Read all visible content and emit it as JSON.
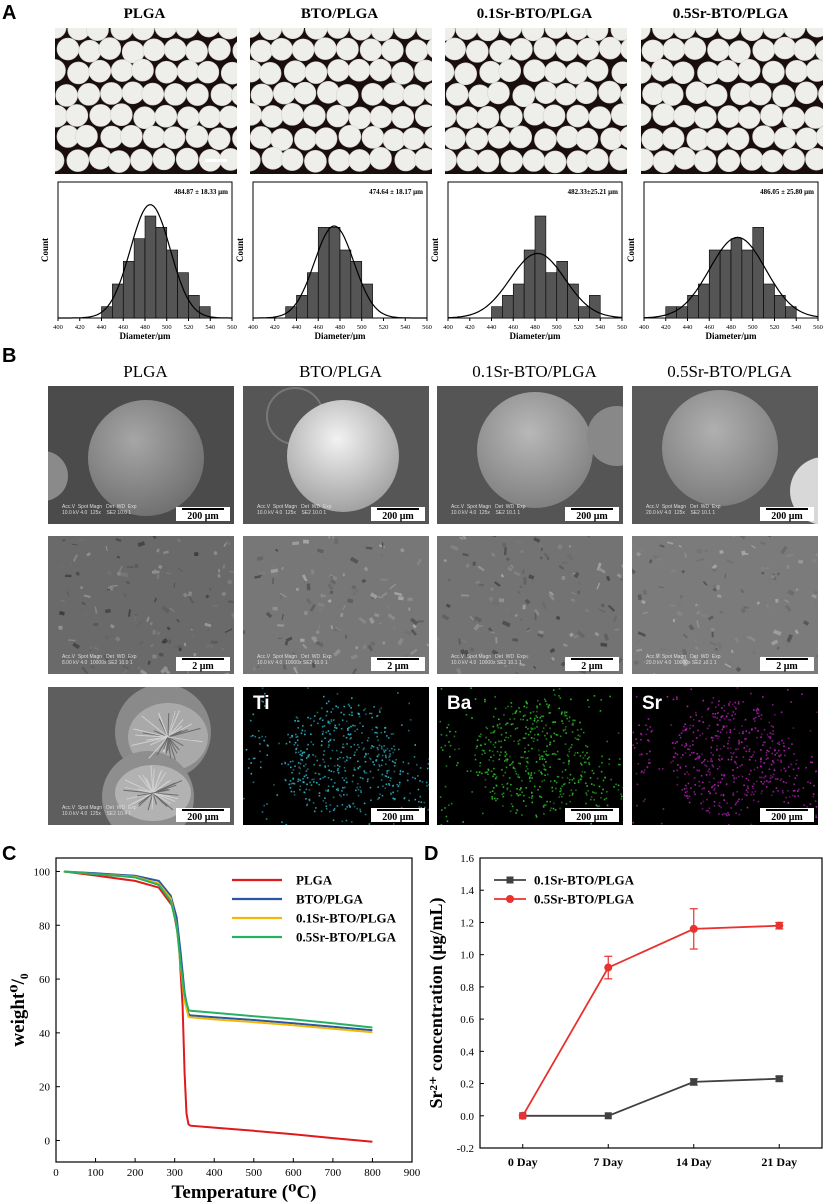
{
  "panel_a": {
    "letter": "A",
    "columns": [
      {
        "title": "PLGA",
        "annotation": "484.87 ± 18.33 μm"
      },
      {
        "title": "BTO/PLGA",
        "annotation": "474.64 ± 18.17 μm"
      },
      {
        "title": "0.1Sr-BTO/PLGA",
        "annotation": "482.33±25.21 μm"
      },
      {
        "title": "0.5Sr-BTO/PLGA",
        "annotation": "486.05 ± 25.80 μm"
      }
    ],
    "ylabel": "Count",
    "xlabel": "Diameter/μm"
  },
  "panel_b": {
    "letter": "B",
    "columns": [
      "PLGA",
      "BTO/PLGA",
      "0.1Sr-BTO/PLGA",
      "0.5Sr-BTO/PLGA"
    ],
    "scale_200": "200 μm",
    "scale_2": "2 μm",
    "mapping_labels": [
      "Ti",
      "Ba",
      "Sr"
    ],
    "mapping_colors": [
      "#2fb3c4",
      "#2ec02a",
      "#b520b5"
    ]
  },
  "panel_c": {
    "letter": "C"
  },
  "panel_d": {
    "letter": "D"
  },
  "chart_data": [
    {
      "type": "bar",
      "panel": "A-PLGA",
      "xlabel": "Diameter/μm",
      "ylabel": "Count",
      "xlim": [
        400,
        560
      ],
      "bins": [
        440,
        450,
        460,
        470,
        480,
        490,
        500,
        510,
        520,
        530
      ],
      "values": [
        1,
        3,
        5,
        7,
        9,
        8,
        6,
        4,
        2,
        1
      ],
      "fit": {
        "mean": 484.87,
        "sd": 18.33
      }
    },
    {
      "type": "bar",
      "panel": "A-BTO/PLGA",
      "xlabel": "Diameter/μm",
      "ylabel": "Count",
      "xlim": [
        400,
        560
      ],
      "bins": [
        430,
        440,
        450,
        460,
        470,
        480,
        490,
        500
      ],
      "values": [
        1,
        2,
        4,
        8,
        8,
        6,
        5,
        3
      ],
      "fit": {
        "mean": 474.64,
        "sd": 18.17
      }
    },
    {
      "type": "bar",
      "panel": "A-0.1Sr-BTO/PLGA",
      "xlabel": "Diameter/μm",
      "ylabel": "Count",
      "xlim": [
        400,
        560
      ],
      "bins": [
        440,
        450,
        460,
        470,
        480,
        490,
        500,
        510,
        520,
        530
      ],
      "values": [
        1,
        2,
        3,
        6,
        9,
        4,
        5,
        3,
        1,
        2
      ],
      "fit": {
        "mean": 482.33,
        "sd": 25.21
      }
    },
    {
      "type": "bar",
      "panel": "A-0.5Sr-BTO/PLGA",
      "xlabel": "Diameter/μm",
      "ylabel": "Count",
      "xlim": [
        400,
        560
      ],
      "bins": [
        420,
        430,
        440,
        450,
        460,
        470,
        480,
        490,
        500,
        510,
        520,
        530
      ],
      "values": [
        1,
        1,
        2,
        3,
        6,
        6,
        7,
        6,
        8,
        3,
        2,
        1
      ],
      "fit": {
        "mean": 486.05,
        "sd": 25.8
      }
    },
    {
      "type": "line",
      "panel": "C",
      "xlabel": "Temperature (⁰C)",
      "ylabel": "weight⁰/₀",
      "xlim": [
        0,
        900
      ],
      "ylim": [
        -8,
        105
      ],
      "xticks": [
        0,
        100,
        200,
        300,
        400,
        500,
        600,
        700,
        800,
        900
      ],
      "yticks": [
        0,
        20,
        40,
        60,
        80,
        100
      ],
      "legend_position": "top-right",
      "series": [
        {
          "name": "PLGA",
          "color": "#e0191c",
          "x": [
            20,
            100,
            200,
            260,
            295,
            310,
            320,
            325,
            330,
            335,
            340,
            400,
            500,
            600,
            700,
            800
          ],
          "y": [
            100,
            98.5,
            96.5,
            94,
            87,
            75,
            50,
            25,
            10,
            6,
            5.5,
            4.8,
            3.6,
            2.3,
            0.9,
            -0.5
          ]
        },
        {
          "name": "BTO/PLGA",
          "color": "#2a57a3",
          "x": [
            20,
            100,
            200,
            260,
            290,
            305,
            315,
            325,
            335,
            340,
            400,
            500,
            600,
            700,
            800
          ],
          "y": [
            100,
            99.3,
            98.4,
            96.5,
            91,
            83,
            70,
            55,
            47,
            46.5,
            45.8,
            44.8,
            43.6,
            42.3,
            41
          ]
        },
        {
          "name": "0.1Sr-BTO/PLGA",
          "color": "#f2b807",
          "x": [
            20,
            100,
            200,
            260,
            290,
            305,
            315,
            325,
            335,
            340,
            400,
            500,
            600,
            700,
            800
          ],
          "y": [
            100,
            99,
            98,
            95.5,
            90,
            80,
            65,
            52,
            46,
            45.8,
            45,
            44,
            42.8,
            41.5,
            40.2
          ]
        },
        {
          "name": "0.5Sr-BTO/PLGA",
          "color": "#27b060",
          "x": [
            20,
            100,
            200,
            260,
            290,
            305,
            315,
            325,
            335,
            340,
            400,
            500,
            600,
            700,
            800
          ],
          "y": [
            100,
            99,
            97.8,
            95,
            89,
            80,
            66,
            54,
            48.5,
            48.2,
            47.5,
            46.2,
            45,
            43.6,
            42
          ]
        }
      ]
    },
    {
      "type": "line",
      "panel": "D",
      "ylabel": "Sr²⁺ concentration (μg/mL)",
      "ylim": [
        -0.2,
        1.6
      ],
      "yticks": [
        -0.2,
        0.0,
        0.2,
        0.4,
        0.6,
        0.8,
        1.0,
        1.2,
        1.4,
        1.6
      ],
      "categories": [
        "0 Day",
        "7 Day",
        "14 Day",
        "21 Day"
      ],
      "legend_position": "top-left",
      "series": [
        {
          "name": "0.1Sr-BTO/PLGA",
          "color": "#404040",
          "marker": "square",
          "values": [
            0.0,
            0.0,
            0.21,
            0.23
          ],
          "errors": [
            0.0,
            0.0,
            0.02,
            0.015
          ]
        },
        {
          "name": "0.5Sr-BTO/PLGA",
          "color": "#e8322f",
          "marker": "circle",
          "values": [
            0.0,
            0.92,
            1.16,
            1.18
          ],
          "errors": [
            0.0,
            0.07,
            0.125,
            0.02
          ]
        }
      ]
    }
  ]
}
